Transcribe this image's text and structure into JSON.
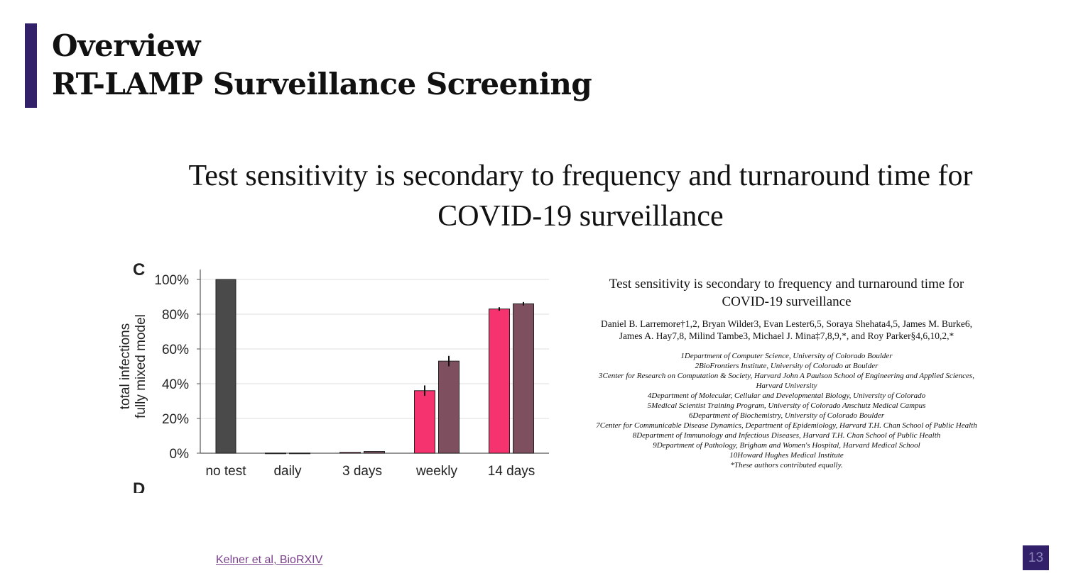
{
  "slide": {
    "title_line1": "Overview",
    "title_line2": "RT-LAMP Surveillance Screening",
    "headline": "Test sensitivity is secondary to frequency and turnaround time for COVID-19 surveillance",
    "reference": "Kelner et al, BioRXIV",
    "page_number": "13",
    "accent_color": "#33206b"
  },
  "chart_data": {
    "type": "bar",
    "panel_label": "C",
    "next_panel_label": "D",
    "ylabel_line1": "total infections",
    "ylabel_line2": "fully mixed model",
    "yticks": [
      "0%",
      "20%",
      "40%",
      "60%",
      "80%",
      "100%"
    ],
    "ylim": [
      0,
      100
    ],
    "categories": [
      "no test",
      "daily",
      "3 days",
      "weekly",
      "14 days"
    ],
    "series": [
      {
        "color": "#f5336f",
        "values": [
          null,
          0.1,
          0.5,
          36,
          83
        ],
        "errors": [
          null,
          0,
          0,
          3,
          1
        ]
      },
      {
        "color": "#7e4f5f",
        "values": [
          null,
          0.1,
          1.0,
          53,
          86
        ],
        "errors": [
          null,
          0,
          0,
          3,
          1
        ]
      }
    ],
    "baseline": {
      "category": "no test",
      "color": "#4a4a4a",
      "value": 100
    }
  },
  "paper": {
    "title": "Test sensitivity is secondary to frequency and turnaround time for COVID-19 surveillance",
    "authors": "Daniel B. Larremore†1,2, Bryan Wilder3, Evan Lester6,5, Soraya Shehata4,5, James M. Burke6, James A. Hay7,8, Milind Tambe3, Michael J. Mina‡7,8,9,*, and Roy Parker§4,6,10,2,*",
    "affiliations": [
      "1Department of Computer Science, University of Colorado Boulder",
      "2BioFrontiers Institute, University of Colorado at Boulder",
      "3Center for Research on Computation & Society, Harvard John A Paulson School of Engineering and Applied Sciences, Harvard University",
      "4Department of Molecular, Cellular and Developmental Biology, University of Colorado",
      "5Medical Scientist Training Program, University of Colorado Anschutz Medical Campus",
      "6Department of Biochemistry, University of Colorado Boulder",
      "7Center for Communicable Disease Dynamics, Department of Epidemiology, Harvard T.H. Chan School of Public Health",
      "8Department of Immunology and Infectious Diseases, Harvard T.H. Chan School of Public Health",
      "9Department of Pathology, Brigham and Women's Hospital, Harvard Medical School",
      "10Howard Hughes Medical Institute",
      "*These authors contributed equally."
    ]
  }
}
